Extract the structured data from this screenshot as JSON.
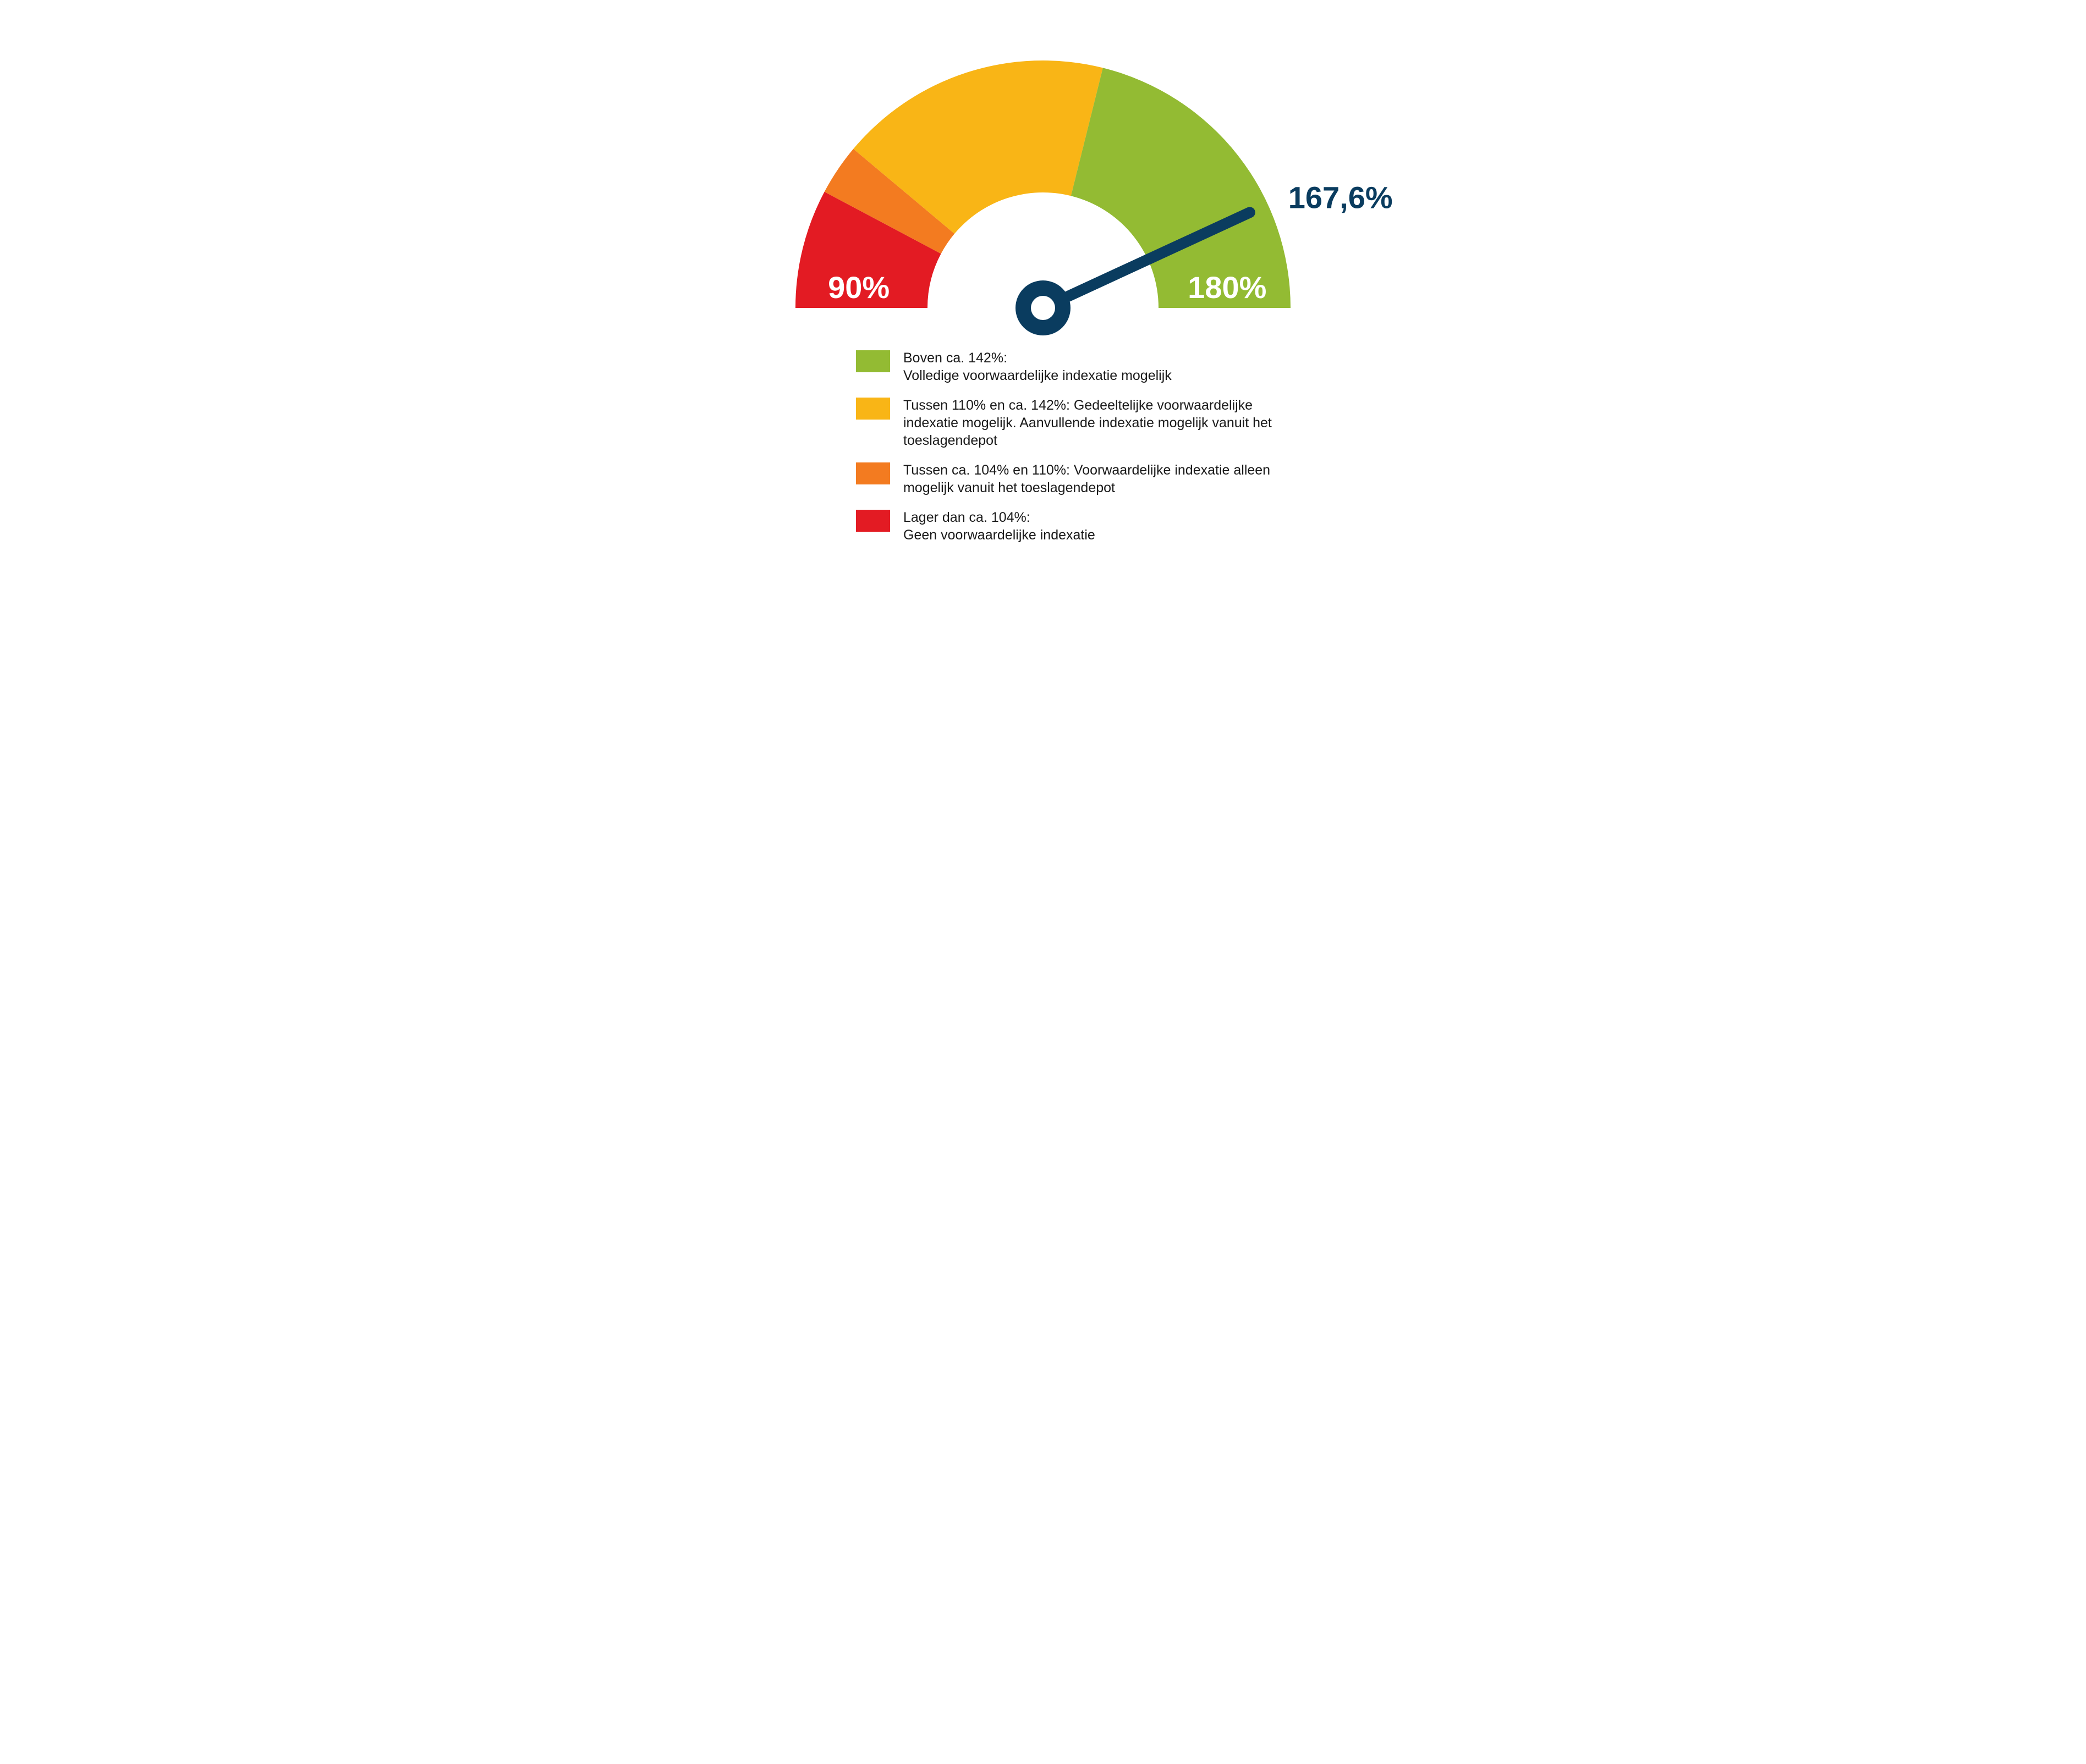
{
  "gauge": {
    "type": "gauge",
    "min": 90,
    "max": 180,
    "value": 167.6,
    "value_label": "167,6%",
    "min_label": "90%",
    "max_label": "180%",
    "outer_radius": 450,
    "inner_radius": 210,
    "background_color": "#ffffff",
    "needle_color": "#0a3c5f",
    "needle_width": 20,
    "hub_outer_r": 50,
    "hub_inner_r": 22,
    "value_label_color": "#0a3c5f",
    "value_label_fontsize": 56,
    "value_label_fontweight": "700",
    "minmax_label_color": "#ffffff",
    "minmax_label_fontsize": 56,
    "minmax_label_fontweight": "700",
    "segments": [
      {
        "from": 90,
        "to": 104,
        "color": "#e31b23"
      },
      {
        "from": 104,
        "to": 110,
        "color": "#f37b20"
      },
      {
        "from": 110,
        "to": 142,
        "color": "#f9b516"
      },
      {
        "from": 142,
        "to": 180,
        "color": "#93bb33"
      }
    ]
  },
  "legend": {
    "swatch_width": 62,
    "swatch_height": 40,
    "text_color": "#1a1a1a",
    "text_fontsize": 25,
    "items": [
      {
        "color": "#93bb33",
        "line1": "Boven ca. 142%:",
        "line2": "Volledige voorwaardelijke indexatie mogelijk"
      },
      {
        "color": "#f9b516",
        "line1": "Tussen 110% en ca. 142%: Gedeeltelijke voorwaardelijke indexatie mogelijk. Aanvullende indexatie mogelijk vanuit het toeslagendepot"
      },
      {
        "color": "#f37b20",
        "line1": "Tussen ca. 104% en 110%: Voorwaardelijke indexatie alleen mogelijk vanuit het toeslagendepot"
      },
      {
        "color": "#e31b23",
        "line1": "Lager dan ca. 104%:",
        "line2": "Geen voorwaardelijke indexatie"
      }
    ]
  }
}
